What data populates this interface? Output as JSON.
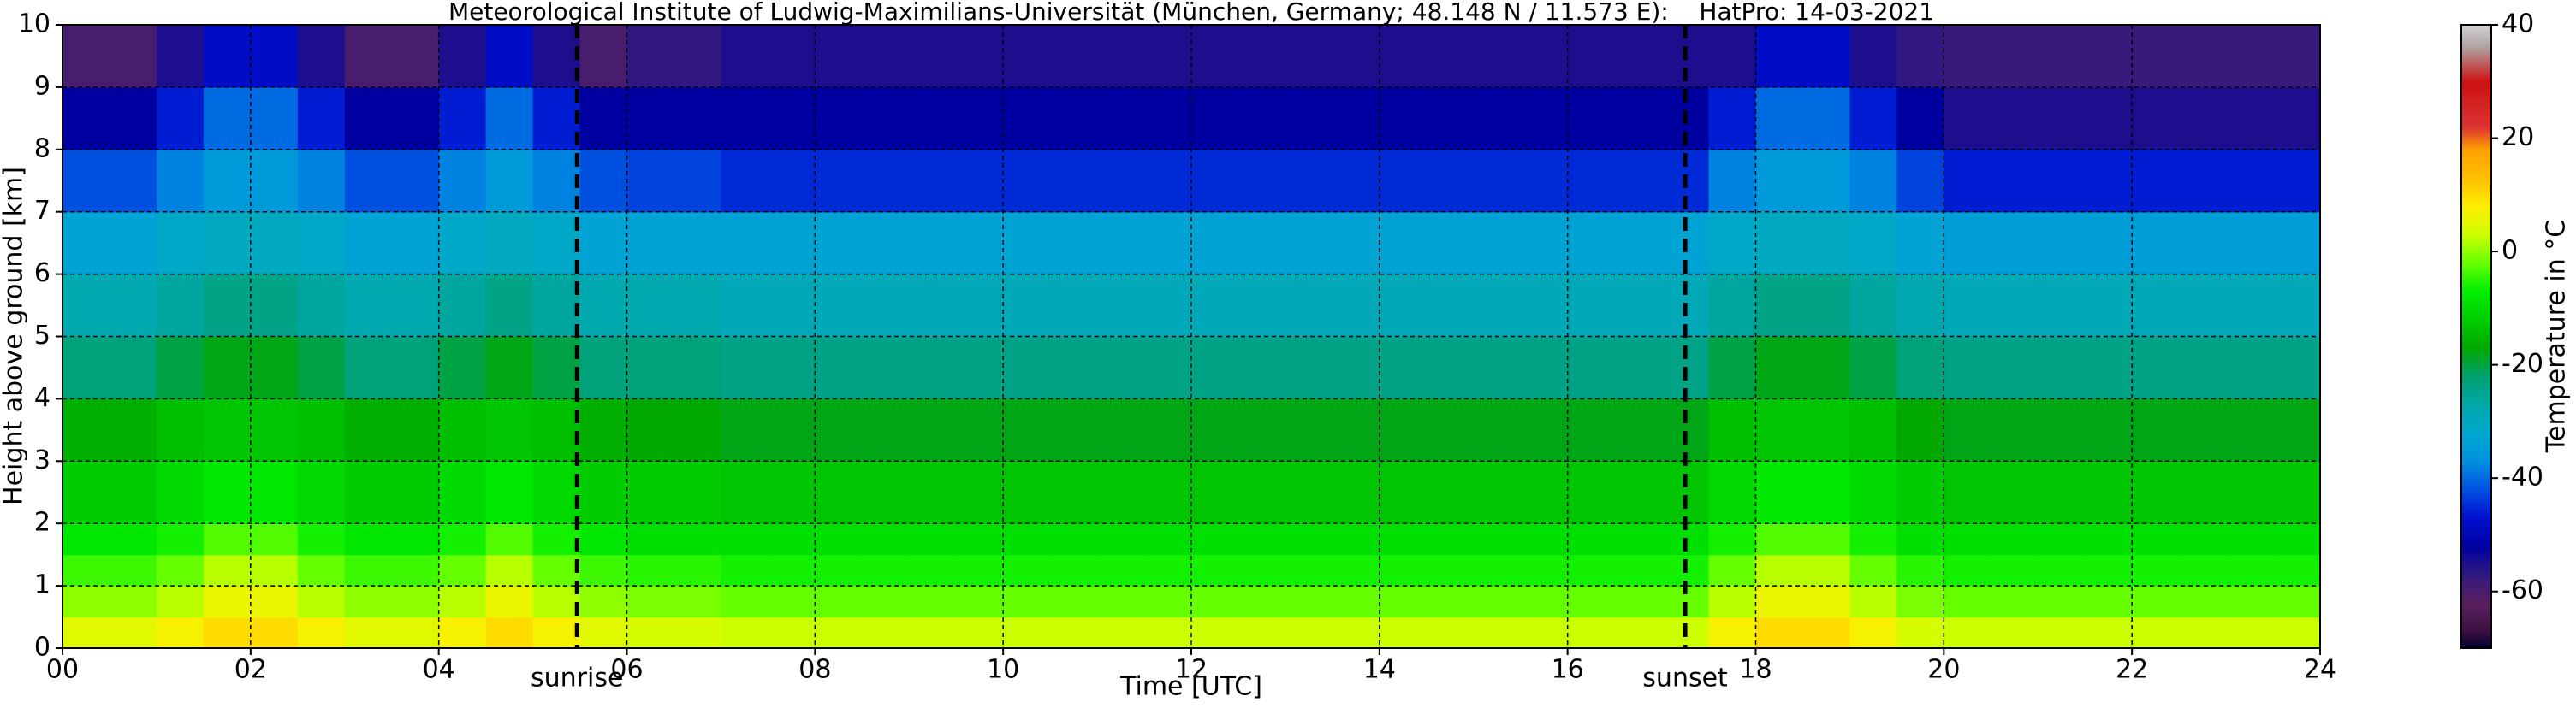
{
  "chart_data": {
    "type": "heatmap",
    "title": "Meteorological Institute of Ludwig-Maximilians-Universität (München, Germany; 48.148 N / 11.573 E):    HatPro: 14-03-2021",
    "xlabel": "Time [UTC]",
    "ylabel": "Height above ground [km]",
    "colorbar_label": "Temperature in °C",
    "x": [
      0,
      0.5,
      1,
      1.5,
      2,
      2.5,
      3,
      3.5,
      4,
      4.5,
      5,
      5.5,
      6,
      6.5,
      7,
      7.5,
      8,
      8.5,
      9,
      9.5,
      10,
      10.5,
      11,
      11.5,
      12,
      12.5,
      13,
      13.5,
      14,
      14.5,
      15,
      15.5,
      16,
      16.5,
      17,
      17.5,
      18,
      18.5,
      19,
      19.5,
      20,
      20.5,
      21,
      21.5,
      22,
      22.5,
      23,
      23.5,
      24
    ],
    "y": [
      0,
      0.5,
      1,
      1.5,
      2,
      3,
      4,
      5,
      6,
      7,
      8,
      9,
      10
    ],
    "z": [
      [
        5,
        5,
        7,
        10,
        10,
        7,
        5,
        5,
        7,
        10,
        7,
        5,
        4,
        4,
        3,
        3,
        3,
        3,
        3,
        3,
        3,
        3,
        3,
        3,
        3,
        3,
        3,
        3,
        3,
        3,
        3,
        3,
        3,
        3,
        3,
        7,
        10,
        10,
        7,
        4,
        3,
        3,
        3,
        3,
        3,
        3,
        3,
        3
      ],
      [
        0,
        0,
        2,
        6,
        6,
        2,
        0,
        0,
        2,
        6,
        2,
        0,
        -1,
        -1,
        -2,
        -2,
        -2,
        -2,
        -2,
        -2,
        -2,
        -2,
        -2,
        -2,
        -2,
        -2,
        -2,
        -2,
        -2,
        -2,
        -2,
        -2,
        -2,
        -2,
        -2,
        2,
        6,
        6,
        2,
        -1,
        -2,
        -2,
        -2,
        -2,
        -2,
        -2,
        -2,
        -2
      ],
      [
        -4,
        -4,
        -2,
        2,
        2,
        -2,
        -4,
        -4,
        -2,
        2,
        -2,
        -4,
        -5,
        -5,
        -6,
        -6,
        -6,
        -6,
        -6,
        -6,
        -6,
        -6,
        -6,
        -6,
        -6,
        -6,
        -6,
        -6,
        -6,
        -6,
        -6,
        -6,
        -6,
        -6,
        -6,
        -2,
        2,
        2,
        -2,
        -5,
        -6,
        -6,
        -6,
        -6,
        -6,
        -6,
        -6,
        -6
      ],
      [
        -8,
        -8,
        -6,
        -3,
        -3,
        -6,
        -8,
        -8,
        -6,
        -3,
        -6,
        -8,
        -9,
        -9,
        -9,
        -9,
        -9,
        -9,
        -9,
        -9,
        -9,
        -9,
        -9,
        -9,
        -9,
        -9,
        -9,
        -9,
        -9,
        -9,
        -9,
        -9,
        -9,
        -9,
        -9,
        -6,
        -3,
        -3,
        -6,
        -9,
        -9,
        -9,
        -9,
        -9,
        -9,
        -9,
        -9,
        -9
      ],
      [
        -12,
        -12,
        -10,
        -8,
        -8,
        -10,
        -12,
        -12,
        -10,
        -8,
        -10,
        -12,
        -12,
        -12,
        -13,
        -13,
        -13,
        -13,
        -13,
        -13,
        -13,
        -13,
        -13,
        -13,
        -13,
        -13,
        -13,
        -13,
        -13,
        -13,
        -13,
        -13,
        -13,
        -13,
        -13,
        -10,
        -8,
        -8,
        -10,
        -12,
        -13,
        -13,
        -13,
        -13,
        -13,
        -13,
        -13,
        -13
      ],
      [
        -16,
        -16,
        -14,
        -13,
        -13,
        -14,
        -16,
        -16,
        -14,
        -13,
        -14,
        -16,
        -17,
        -17,
        -18,
        -18,
        -18,
        -18,
        -18,
        -18,
        -18,
        -18,
        -18,
        -18,
        -18,
        -18,
        -18,
        -18,
        -18,
        -18,
        -18,
        -18,
        -18,
        -18,
        -18,
        -14,
        -13,
        -13,
        -14,
        -17,
        -18,
        -18,
        -18,
        -18,
        -18,
        -18,
        -18,
        -18
      ],
      [
        -23,
        -23,
        -20,
        -18,
        -18,
        -20,
        -23,
        -23,
        -20,
        -18,
        -20,
        -23,
        -23,
        -23,
        -24,
        -24,
        -24,
        -24,
        -24,
        -24,
        -24,
        -24,
        -24,
        -24,
        -24,
        -24,
        -24,
        -24,
        -24,
        -24,
        -24,
        -24,
        -24,
        -24,
        -24,
        -20,
        -18,
        -18,
        -20,
        -23,
        -24,
        -24,
        -24,
        -24,
        -24,
        -24,
        -24,
        -24
      ],
      [
        -28,
        -28,
        -26,
        -24,
        -24,
        -26,
        -28,
        -28,
        -26,
        -24,
        -26,
        -28,
        -28,
        -28,
        -29,
        -29,
        -29,
        -29,
        -29,
        -29,
        -29,
        -29,
        -29,
        -29,
        -29,
        -29,
        -29,
        -29,
        -29,
        -29,
        -29,
        -29,
        -29,
        -29,
        -29,
        -26,
        -24,
        -24,
        -26,
        -28,
        -29,
        -29,
        -29,
        -29,
        -29,
        -29,
        -29,
        -29
      ],
      [
        -33,
        -33,
        -31,
        -30,
        -30,
        -31,
        -33,
        -33,
        -31,
        -30,
        -31,
        -33,
        -33,
        -33,
        -33,
        -33,
        -33,
        -33,
        -33,
        -33,
        -33,
        -33,
        -33,
        -33,
        -33,
        -33,
        -33,
        -33,
        -33,
        -33,
        -33,
        -33,
        -33,
        -33,
        -33,
        -31,
        -30,
        -30,
        -31,
        -33,
        -34,
        -34,
        -34,
        -34,
        -34,
        -34,
        -34,
        -34
      ],
      [
        -42,
        -42,
        -38,
        -35,
        -35,
        -38,
        -42,
        -42,
        -38,
        -35,
        -38,
        -42,
        -43,
        -43,
        -45,
        -45,
        -45,
        -45,
        -45,
        -45,
        -45,
        -45,
        -45,
        -45,
        -45,
        -45,
        -45,
        -45,
        -45,
        -45,
        -45,
        -45,
        -45,
        -45,
        -45,
        -38,
        -35,
        -35,
        -38,
        -43,
        -46,
        -46,
        -46,
        -46,
        -46,
        -46,
        -46,
        -46
      ],
      [
        -52,
        -52,
        -46,
        -40,
        -40,
        -46,
        -52,
        -52,
        -46,
        -40,
        -46,
        -52,
        -52,
        -52,
        -52,
        -52,
        -52,
        -52,
        -52,
        -52,
        -52,
        -52,
        -52,
        -52,
        -52,
        -52,
        -52,
        -52,
        -52,
        -52,
        -52,
        -52,
        -52,
        -52,
        -52,
        -46,
        -40,
        -40,
        -46,
        -52,
        -55,
        -55,
        -55,
        -55,
        -55,
        -55,
        -55,
        -55
      ],
      [
        -60,
        -60,
        -55,
        -48,
        -48,
        -55,
        -60,
        -60,
        -55,
        -48,
        -55,
        -60,
        -57,
        -57,
        -55,
        -55,
        -55,
        -55,
        -55,
        -55,
        -55,
        -55,
        -55,
        -55,
        -55,
        -55,
        -55,
        -55,
        -55,
        -55,
        -55,
        -55,
        -55,
        -55,
        -55,
        -55,
        -48,
        -48,
        -55,
        -57,
        -58,
        -58,
        -58,
        -58,
        -58,
        -58,
        -58,
        -58
      ]
    ],
    "xlim": [
      0,
      24
    ],
    "ylim": [
      0,
      10
    ],
    "xticks": [
      {
        "value": 0,
        "label": "00"
      },
      {
        "value": 2,
        "label": "02"
      },
      {
        "value": 4,
        "label": "04"
      },
      {
        "value": 6,
        "label": "06"
      },
      {
        "value": 8,
        "label": "08"
      },
      {
        "value": 10,
        "label": "10"
      },
      {
        "value": 12,
        "label": "12"
      },
      {
        "value": 14,
        "label": "14"
      },
      {
        "value": 16,
        "label": "16"
      },
      {
        "value": 18,
        "label": "18"
      },
      {
        "value": 20,
        "label": "20"
      },
      {
        "value": 22,
        "label": "22"
      },
      {
        "value": 24,
        "label": "24"
      }
    ],
    "yticks": [
      0,
      1,
      2,
      3,
      4,
      5,
      6,
      7,
      8,
      9,
      10
    ],
    "grid": true,
    "clim": [
      -70,
      40
    ],
    "cticks": [
      -60,
      -40,
      -20,
      0,
      20,
      40
    ],
    "colormap": [
      {
        "value": -70,
        "color": "#000030"
      },
      {
        "value": -67,
        "color": "#3a1040"
      },
      {
        "value": -62,
        "color": "#5a2060"
      },
      {
        "value": -57,
        "color": "#301880"
      },
      {
        "value": -52,
        "color": "#0000a0"
      },
      {
        "value": -47,
        "color": "#0010d0"
      },
      {
        "value": -42,
        "color": "#0050e0"
      },
      {
        "value": -37,
        "color": "#0090e0"
      },
      {
        "value": -32,
        "color": "#00a8d0"
      },
      {
        "value": -27,
        "color": "#00a8a8"
      },
      {
        "value": -22,
        "color": "#00a070"
      },
      {
        "value": -17,
        "color": "#00a800"
      },
      {
        "value": -12,
        "color": "#00cc00"
      },
      {
        "value": -7,
        "color": "#00ee00"
      },
      {
        "value": -2,
        "color": "#66ff00"
      },
      {
        "value": 3,
        "color": "#ccff00"
      },
      {
        "value": 8,
        "color": "#ffee00"
      },
      {
        "value": 13,
        "color": "#ffc000"
      },
      {
        "value": 18,
        "color": "#ffa000"
      },
      {
        "value": 22,
        "color": "#dd3333"
      },
      {
        "value": 30,
        "color": "#cc1111"
      },
      {
        "value": 36,
        "color": "#b0a0a0"
      },
      {
        "value": 40,
        "color": "#d0d0d0"
      }
    ],
    "annotations": [
      {
        "x": 5.47,
        "label": "sunrise"
      },
      {
        "x": 17.25,
        "label": "sunset"
      }
    ]
  }
}
